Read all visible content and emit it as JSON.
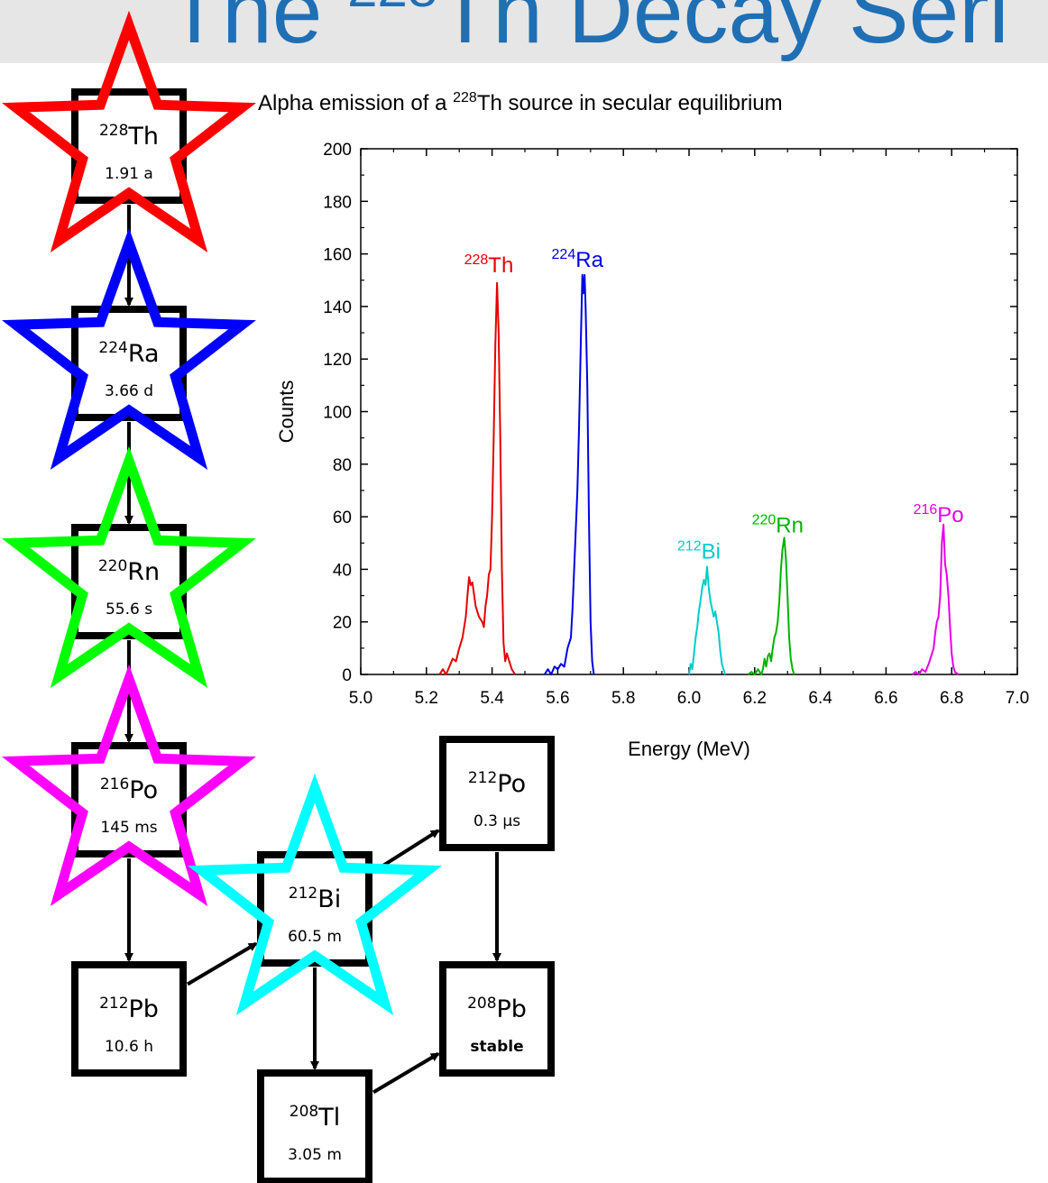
{
  "page": {
    "title_prefix": "The ",
    "title_mass": "228",
    "title_rest": "Th Decay Seri"
  },
  "decay_chain": {
    "nuclides": [
      {
        "id": "th228",
        "mass": "228",
        "symbol": "Th",
        "half_life": "1.91 a",
        "star_color": "#ff0000"
      },
      {
        "id": "ra224",
        "mass": "224",
        "symbol": "Ra",
        "half_life": "3.66 d",
        "star_color": "#0000ff"
      },
      {
        "id": "rn220",
        "mass": "220",
        "symbol": "Rn",
        "half_life": "55.6 s",
        "star_color": "#00ff00"
      },
      {
        "id": "po216",
        "mass": "216",
        "symbol": "Po",
        "half_life": "145 ms",
        "star_color": "#ff00ff"
      },
      {
        "id": "pb212",
        "mass": "212",
        "symbol": "Pb",
        "half_life": "10.6 h"
      },
      {
        "id": "bi212",
        "mass": "212",
        "symbol": "Bi",
        "half_life": "60.5 m",
        "star_color": "#00ffff"
      },
      {
        "id": "po212",
        "mass": "212",
        "symbol": "Po",
        "half_life": "0.3 µs"
      },
      {
        "id": "tl208",
        "mass": "208",
        "symbol": "Tl",
        "half_life": "3.05 m"
      },
      {
        "id": "pb208",
        "mass": "208",
        "symbol": "Pb",
        "half_life": "stable",
        "half_life_bold": true
      }
    ],
    "links": [
      [
        "th228",
        "ra224"
      ],
      [
        "ra224",
        "rn220"
      ],
      [
        "rn220",
        "po216"
      ],
      [
        "po216",
        "pb212"
      ],
      [
        "pb212",
        "bi212"
      ],
      [
        "bi212",
        "po212"
      ],
      [
        "bi212",
        "tl208"
      ],
      [
        "po212",
        "pb208"
      ],
      [
        "tl208",
        "pb208"
      ]
    ]
  },
  "chart_data": {
    "type": "line",
    "title_prefix": "Alpha emission of a ",
    "title_mass": "228",
    "title_rest": "Th source in secular equilibrium",
    "xlabel": "Energy (MeV)",
    "ylabel": "Counts",
    "xlim": [
      5.0,
      7.0
    ],
    "ylim": [
      0,
      200
    ],
    "xticks": [
      "5.0",
      "5.2",
      "5.4",
      "5.6",
      "5.8",
      "6.0",
      "6.2",
      "6.4",
      "6.6",
      "6.8",
      "7.0"
    ],
    "yticks": [
      "0",
      "20",
      "40",
      "60",
      "80",
      "100",
      "120",
      "140",
      "160",
      "180",
      "200"
    ],
    "series": [
      {
        "name": "Th",
        "mass": "228",
        "color": "#e60000",
        "label_x": 5.39,
        "label_y": 153,
        "points": [
          [
            5.24,
            0
          ],
          [
            5.25,
            2
          ],
          [
            5.26,
            0
          ],
          [
            5.27,
            3
          ],
          [
            5.28,
            6
          ],
          [
            5.29,
            5
          ],
          [
            5.3,
            10
          ],
          [
            5.31,
            14
          ],
          [
            5.32,
            22
          ],
          [
            5.325,
            30
          ],
          [
            5.33,
            37
          ],
          [
            5.335,
            34
          ],
          [
            5.34,
            35
          ],
          [
            5.35,
            26
          ],
          [
            5.36,
            22
          ],
          [
            5.37,
            20
          ],
          [
            5.375,
            18
          ],
          [
            5.38,
            26
          ],
          [
            5.385,
            30
          ],
          [
            5.39,
            38
          ],
          [
            5.395,
            40
          ],
          [
            5.4,
            60
          ],
          [
            5.405,
            90
          ],
          [
            5.41,
            125
          ],
          [
            5.415,
            149
          ],
          [
            5.42,
            130
          ],
          [
            5.425,
            90
          ],
          [
            5.43,
            40
          ],
          [
            5.435,
            12
          ],
          [
            5.44,
            5
          ],
          [
            5.445,
            8
          ],
          [
            5.45,
            6
          ],
          [
            5.46,
            2
          ],
          [
            5.47,
            0
          ]
        ]
      },
      {
        "name": "Ra",
        "mass": "224",
        "color": "#0000e6",
        "label_x": 5.66,
        "label_y": 155,
        "points": [
          [
            5.56,
            0
          ],
          [
            5.57,
            2
          ],
          [
            5.58,
            0
          ],
          [
            5.59,
            3
          ],
          [
            5.6,
            2
          ],
          [
            5.61,
            4
          ],
          [
            5.62,
            3
          ],
          [
            5.63,
            10
          ],
          [
            5.64,
            14
          ],
          [
            5.645,
            25
          ],
          [
            5.65,
            40
          ],
          [
            5.655,
            55
          ],
          [
            5.66,
            70
          ],
          [
            5.665,
            95
          ],
          [
            5.67,
            125
          ],
          [
            5.675,
            152
          ],
          [
            5.678,
            145
          ],
          [
            5.682,
            152
          ],
          [
            5.685,
            140
          ],
          [
            5.69,
            110
          ],
          [
            5.695,
            60
          ],
          [
            5.7,
            20
          ],
          [
            5.705,
            5
          ],
          [
            5.71,
            0
          ]
        ]
      },
      {
        "name": "Bi",
        "mass": "212",
        "color": "#00cccc",
        "label_x": 6.03,
        "label_y": 44,
        "points": [
          [
            6.0,
            0
          ],
          [
            6.005,
            4
          ],
          [
            6.01,
            2
          ],
          [
            6.015,
            8
          ],
          [
            6.02,
            14
          ],
          [
            6.025,
            18
          ],
          [
            6.03,
            24
          ],
          [
            6.035,
            28
          ],
          [
            6.04,
            33
          ],
          [
            6.045,
            36
          ],
          [
            6.05,
            34
          ],
          [
            6.055,
            41
          ],
          [
            6.06,
            33
          ],
          [
            6.065,
            28
          ],
          [
            6.07,
            25
          ],
          [
            6.075,
            22
          ],
          [
            6.08,
            24
          ],
          [
            6.085,
            20
          ],
          [
            6.09,
            16
          ],
          [
            6.095,
            9
          ],
          [
            6.1,
            4
          ],
          [
            6.105,
            2
          ],
          [
            6.11,
            0
          ]
        ]
      },
      {
        "name": "Rn",
        "mass": "220",
        "color": "#00b300",
        "label_x": 6.27,
        "label_y": 54,
        "points": [
          [
            6.18,
            0
          ],
          [
            6.19,
            1
          ],
          [
            6.2,
            0
          ],
          [
            6.21,
            2
          ],
          [
            6.22,
            0
          ],
          [
            6.225,
            2
          ],
          [
            6.23,
            6
          ],
          [
            6.235,
            3
          ],
          [
            6.24,
            7
          ],
          [
            6.245,
            8
          ],
          [
            6.25,
            5
          ],
          [
            6.255,
            10
          ],
          [
            6.26,
            14
          ],
          [
            6.265,
            16
          ],
          [
            6.27,
            20
          ],
          [
            6.275,
            28
          ],
          [
            6.28,
            40
          ],
          [
            6.285,
            48
          ],
          [
            6.29,
            52
          ],
          [
            6.295,
            44
          ],
          [
            6.3,
            30
          ],
          [
            6.305,
            14
          ],
          [
            6.31,
            6
          ],
          [
            6.315,
            2
          ],
          [
            6.32,
            0
          ]
        ]
      },
      {
        "name": "Po",
        "mass": "216",
        "color": "#e600e6",
        "label_x": 6.76,
        "label_y": 58,
        "points": [
          [
            6.68,
            0
          ],
          [
            6.69,
            1
          ],
          [
            6.7,
            0
          ],
          [
            6.71,
            2
          ],
          [
            6.72,
            1
          ],
          [
            6.73,
            4
          ],
          [
            6.74,
            8
          ],
          [
            6.745,
            10
          ],
          [
            6.75,
            16
          ],
          [
            6.755,
            20
          ],
          [
            6.76,
            22
          ],
          [
            6.765,
            30
          ],
          [
            6.77,
            50
          ],
          [
            6.775,
            57
          ],
          [
            6.78,
            42
          ],
          [
            6.785,
            38
          ],
          [
            6.79,
            30
          ],
          [
            6.795,
            18
          ],
          [
            6.8,
            8
          ],
          [
            6.805,
            3
          ],
          [
            6.81,
            1
          ],
          [
            6.82,
            0
          ]
        ]
      }
    ]
  }
}
